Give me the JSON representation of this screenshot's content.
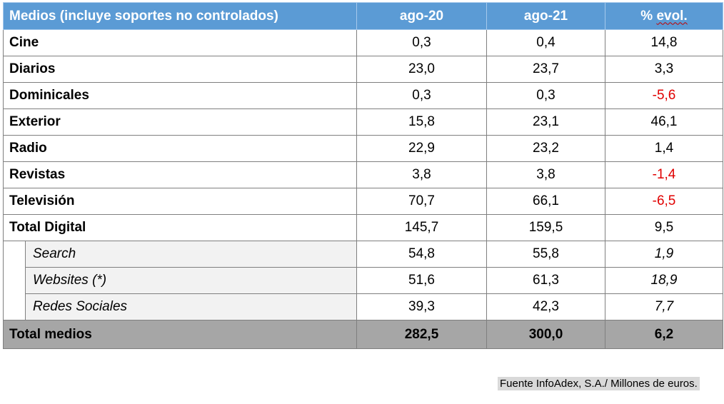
{
  "header": {
    "medio": "Medios (incluye soportes no controlados)",
    "col1": "ago-20",
    "col2": "ago-21",
    "col3_word1": "% ",
    "col3_word2": "evol."
  },
  "rows": [
    {
      "label": "Cine",
      "v1": "0,3",
      "v2": "0,4",
      "evol": "14,8"
    },
    {
      "label": "Diarios",
      "v1": "23,0",
      "v2": "23,7",
      "evol": "3,3"
    },
    {
      "label": "Dominicales",
      "v1": "0,3",
      "v2": "0,3",
      "evol": "-5,6"
    },
    {
      "label": "Exterior",
      "v1": "15,8",
      "v2": "23,1",
      "evol": "46,1"
    },
    {
      "label": "Radio",
      "v1": "22,9",
      "v2": "23,2",
      "evol": "1,4"
    },
    {
      "label": "Revistas",
      "v1": "3,8",
      "v2": "3,8",
      "evol": "-1,4"
    },
    {
      "label": "Televisión",
      "v1": "70,7",
      "v2": "66,1",
      "evol": "-6,5"
    },
    {
      "label": "Total Digital",
      "v1": "145,7",
      "v2": "159,5",
      "evol": "9,5"
    }
  ],
  "subrows": [
    {
      "label": "Search",
      "v1": "54,8",
      "v2": "55,8",
      "evol": "1,9"
    },
    {
      "label": "Websites (*)",
      "v1": "51,6",
      "v2": "61,3",
      "evol": "18,9"
    },
    {
      "label": "Redes Sociales",
      "v1": "39,3",
      "v2": "42,3",
      "evol": "7,7"
    }
  ],
  "total": {
    "label": "Total medios",
    "v1": "282,5",
    "v2": "300,0",
    "evol": "6,2"
  },
  "source": "Fuente InfoAdex, S.A./ Millones de euros.",
  "colors": {
    "header_bg": "#5b9bd5",
    "negative": "#e00000",
    "total_bg": "#a6a6a6",
    "sub_bg": "#f2f2f2"
  }
}
